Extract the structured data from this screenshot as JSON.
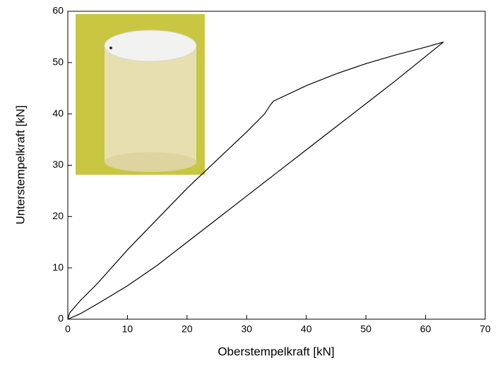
{
  "chart_data": {
    "type": "line",
    "x_label": "Oberstempelkraft [kN]",
    "y_label": "Unterstempelkraft [kN]",
    "xlim": [
      0,
      70
    ],
    "xticks": [
      0,
      10,
      20,
      30,
      40,
      50,
      60,
      70
    ],
    "ylim": [
      0,
      60
    ],
    "yticks": [
      0,
      10,
      20,
      30,
      40,
      50,
      60
    ],
    "series": [
      {
        "color": "#000000",
        "x": [
          0,
          0.3,
          2,
          5,
          10,
          15,
          20,
          25,
          30,
          33,
          34,
          34.5,
          40,
          45,
          50,
          55,
          60,
          63
        ],
        "values": [
          0,
          1.2,
          3.5,
          7,
          13.5,
          19.5,
          25.5,
          31,
          36.5,
          40,
          41.8,
          42.5,
          45.5,
          47.8,
          49.8,
          51.5,
          53,
          54
        ]
      },
      {
        "color": "#000000",
        "x": [
          63,
          55,
          50,
          45,
          40,
          35,
          30,
          25,
          20,
          15,
          10,
          5,
          2,
          0
        ],
        "values": [
          54,
          46.5,
          42,
          37.5,
          33,
          28.5,
          24,
          19.5,
          15,
          10.5,
          6.5,
          3,
          1,
          0
        ]
      }
    ]
  }
}
